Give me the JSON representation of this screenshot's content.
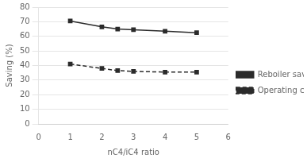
{
  "chart_data": {
    "type": "line",
    "xlabel": "nC4/iC4 ratio",
    "ylabel": "Saving (%)",
    "x": [
      1,
      2,
      2.5,
      3,
      4,
      5
    ],
    "xlim": [
      0,
      6
    ],
    "ylim": [
      0,
      80
    ],
    "xticks": [
      0,
      1,
      2,
      3,
      4,
      5,
      6
    ],
    "yticks": [
      0,
      10,
      20,
      30,
      40,
      50,
      60,
      70,
      80
    ],
    "grid": "y",
    "legend": "right",
    "series": [
      {
        "name": "Reboiler saving",
        "values": [
          70.5,
          66.5,
          65.0,
          64.5,
          63.5,
          62.5
        ],
        "color": "#2b2b2b",
        "line_style": "solid",
        "marker": "square"
      },
      {
        "name": "Operating cost saving",
        "values": [
          41.0,
          38.0,
          36.5,
          36.0,
          35.5,
          35.5
        ],
        "color": "#2b2b2b",
        "line_style": "dashed",
        "marker": "square"
      }
    ]
  }
}
